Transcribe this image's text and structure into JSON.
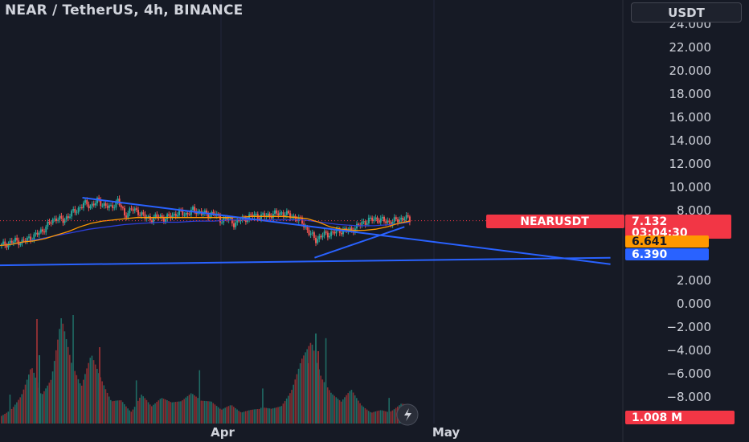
{
  "header": {
    "title": "NEAR / TetherUS, 4h, BINANCE",
    "currency_button": "USDT"
  },
  "chart_data": {
    "type": "candlestick",
    "title": "NEAR / TetherUS, 4h, BINANCE",
    "x_ticks": [
      "Apr",
      "May"
    ],
    "y_ticks": [
      "24.000",
      "22.000",
      "20.000",
      "18.000",
      "16.000",
      "14.000",
      "12.000",
      "10.000",
      "8.000",
      "2.000",
      "0.000",
      "−2.000",
      "−4.000",
      "−6.000",
      "−8.000"
    ],
    "ylim": [
      -9,
      24.2
    ],
    "price_path": [
      5.0,
      5.2,
      5.4,
      5.3,
      5.6,
      5.9,
      6.3,
      6.9,
      7.4,
      7.1,
      7.7,
      8.0,
      8.6,
      8.4,
      8.8,
      8.5,
      8.2,
      8.9,
      7.6,
      8.1,
      7.9,
      7.4,
      7.3,
      7.5,
      7.3,
      7.6,
      7.8,
      7.7,
      8.0,
      7.9,
      7.6,
      7.8,
      7.2,
      7.3,
      6.9,
      7.2,
      7.4,
      7.6,
      7.5,
      7.6,
      7.7,
      7.8,
      7.6,
      7.4,
      7.0,
      6.1,
      5.5,
      5.9,
      6.0,
      6.2,
      6.3,
      6.3,
      6.6,
      7.0,
      7.2,
      7.3,
      7.1,
      7.0,
      7.2,
      7.4,
      7.1
    ],
    "ema_fast_path": [
      5.0,
      5.1,
      5.3,
      5.4,
      5.6,
      5.9,
      6.2,
      6.6,
      6.9,
      7.1,
      7.2,
      7.3,
      7.4,
      7.4,
      7.4,
      7.4,
      7.4,
      7.4,
      7.4,
      7.4,
      7.4,
      7.4,
      7.5,
      7.5,
      7.5,
      7.5,
      7.4,
      7.3,
      7.0,
      6.6,
      6.4,
      6.3,
      6.3,
      6.4,
      6.6,
      6.9,
      7.1
    ],
    "ema_slow_path": [
      5.0,
      5.2,
      5.5,
      5.8,
      6.1,
      6.4,
      6.6,
      6.8,
      6.9,
      7.0,
      7.0,
      7.1,
      7.1,
      7.2,
      7.2,
      7.2,
      7.2,
      7.2,
      7.0,
      6.8,
      6.7,
      6.7,
      6.8,
      7.0
    ],
    "volume_path": [
      0.2,
      0.3,
      0.5,
      0.9,
      0.4,
      0.6,
      1.4,
      0.8,
      0.5,
      1.0,
      0.7,
      0.4,
      0.5,
      0.3,
      0.6,
      0.3,
      0.4,
      0.3,
      0.3,
      0.4,
      0.3,
      0.3,
      0.2,
      0.3,
      0.2,
      0.3,
      0.4,
      0.3,
      0.3,
      0.5,
      0.9,
      1.1,
      0.6,
      0.4,
      0.3,
      0.5,
      0.3,
      0.2,
      0.3,
      0.3,
      0.4,
      0.3
    ],
    "trendlines": [
      {
        "name": "upper-resistance",
        "from": [
          0.11,
          9.1
        ],
        "to": [
          0.815,
          3.4
        ]
      },
      {
        "name": "lower-support",
        "from": [
          0.0,
          3.3
        ],
        "to": [
          0.815,
          3.95
        ]
      },
      {
        "name": "rising-wedge",
        "from": [
          0.42,
          3.95
        ],
        "to": [
          0.54,
          6.6
        ]
      }
    ],
    "last_price_line": 7.132,
    "price_tags": [
      {
        "label": "NEARUSDT",
        "value": "7.132",
        "sub": "03:04:30",
        "color": "#f23645"
      },
      {
        "label": "",
        "value": "6.641",
        "sub": "",
        "color": "#ff9800"
      },
      {
        "label": "",
        "value": "6.390",
        "sub": "",
        "color": "#2962ff"
      },
      {
        "label": "",
        "value": "1.008 M",
        "sub": "",
        "color": "#f23645"
      }
    ],
    "colors": {
      "up": "#26a69a",
      "down": "#ef5350",
      "line": "#2962ff",
      "ema": "#ff9800",
      "ema_slow": "#2c3fdc",
      "background": "#161a25"
    }
  }
}
